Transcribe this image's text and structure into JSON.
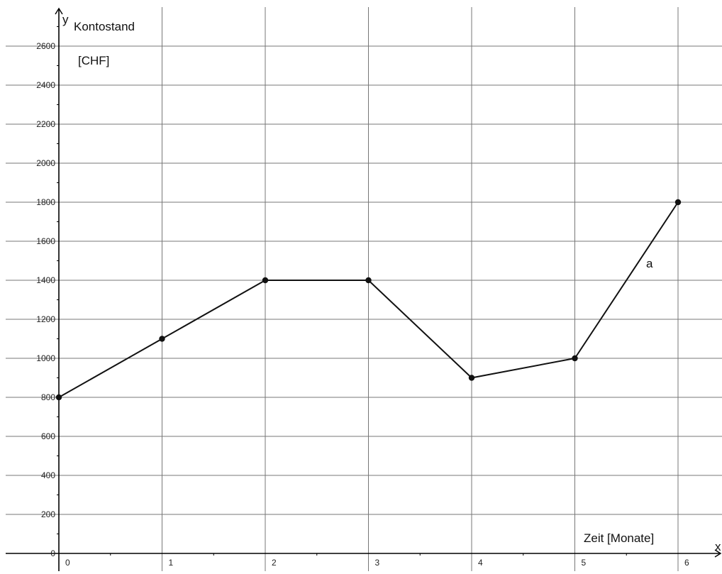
{
  "chart_data": {
    "type": "line",
    "x": [
      0,
      1,
      2,
      3,
      4,
      5,
      6
    ],
    "series": [
      {
        "name": "a",
        "values": [
          800,
          1100,
          1400,
          1400,
          900,
          1000,
          1800
        ]
      }
    ],
    "xlim": [
      0,
      6.45
    ],
    "ylim": [
      0,
      2760
    ],
    "x_ticks": [
      "0",
      "1",
      "2",
      "3",
      "4",
      "5",
      "6"
    ],
    "y_ticks": [
      "0",
      "200",
      "400",
      "600",
      "800",
      "1000",
      "1200",
      "1400",
      "1600",
      "1800",
      "2000",
      "2200",
      "2400",
      "2600"
    ],
    "x_axis_name": "x",
    "y_axis_name": "y",
    "ylabel_line1": "Kontostand",
    "ylabel_line2": "[CHF]",
    "xlabel": "Zeit [Monate]",
    "series_label": "a",
    "grid": true,
    "colors": {
      "line": "#111111",
      "grid": "#777777",
      "axis": "#000000"
    }
  }
}
